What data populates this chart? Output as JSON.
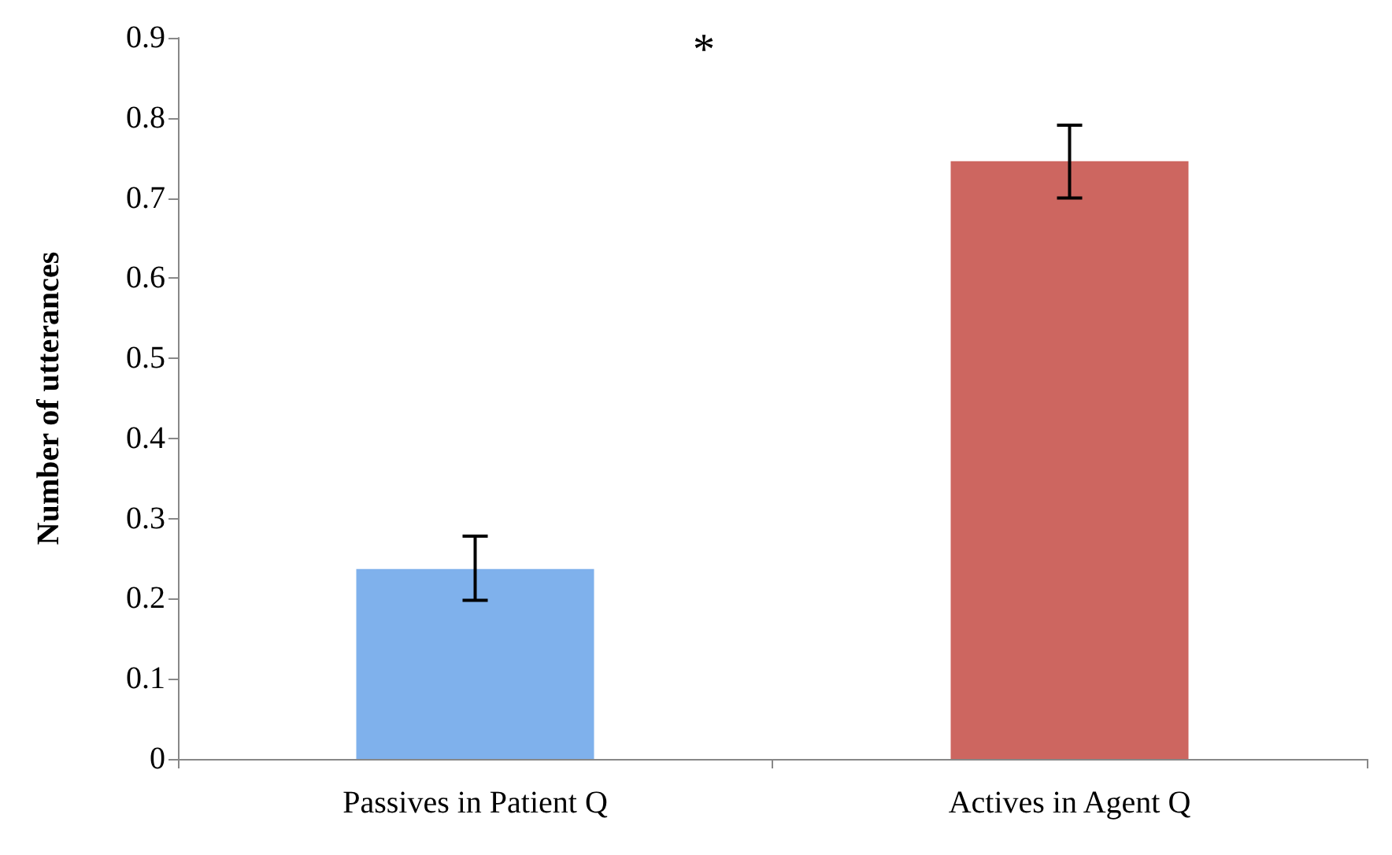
{
  "chart_data": {
    "type": "bar",
    "ylabel": "Number of utterances",
    "categories": [
      "Passives in Patient Q",
      "Actives in Agent Q"
    ],
    "values": [
      0.237,
      0.746
    ],
    "colors": [
      "#7fb1ec",
      "#cd6660"
    ],
    "errors": [
      [
        0.198,
        0.278
      ],
      [
        0.7,
        0.791
      ]
    ],
    "ylim": [
      0,
      0.9
    ],
    "yticks": [
      0,
      0.1,
      0.2,
      0.3,
      0.4,
      0.5,
      0.6,
      0.7,
      0.8,
      0.9
    ],
    "annotations": [
      "*"
    ]
  }
}
